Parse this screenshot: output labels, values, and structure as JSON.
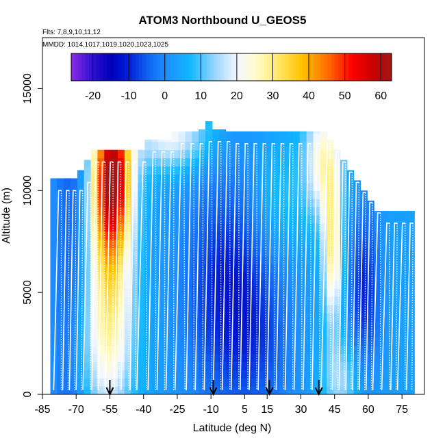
{
  "chart_data": {
    "type": "heatmap",
    "title": "ATOM3 Northbound U_GEOS5",
    "subtitle_flights": "Flts: 7,8,9,10,11,12",
    "subtitle_dates": "MMDD: 1014,1017,1019,1020,1023,1025",
    "xlabel": "Latitude (deg N)",
    "ylabel": "Altitude (m)",
    "xlim": [
      -85,
      85
    ],
    "ylim": [
      0,
      17500
    ],
    "x_ticks": [
      -85,
      -70,
      -55,
      -40,
      -25,
      -10,
      5,
      15,
      30,
      45,
      60,
      75
    ],
    "y_ticks": [
      0,
      5000,
      10000,
      15000
    ],
    "colorbar": {
      "range": [
        -26,
        63
      ],
      "ticks": [
        -20,
        -10,
        0,
        10,
        20,
        30,
        40,
        50,
        60
      ],
      "stops": [
        {
          "v": -26,
          "c": "#8a2be2"
        },
        {
          "v": -20,
          "c": "#2d0fd0"
        },
        {
          "v": -15,
          "c": "#0000b8"
        },
        {
          "v": -10,
          "c": "#0020d8"
        },
        {
          "v": -5,
          "c": "#1060f0"
        },
        {
          "v": 0,
          "c": "#1e8cff"
        },
        {
          "v": 7,
          "c": "#10b8ff"
        },
        {
          "v": 14,
          "c": "#9ad6ff"
        },
        {
          "v": 20,
          "c": "#f2f7ff"
        },
        {
          "v": 25,
          "c": "#fffbd0"
        },
        {
          "v": 30,
          "c": "#ffef80"
        },
        {
          "v": 38,
          "c": "#ffc400"
        },
        {
          "v": 45,
          "c": "#ff7000"
        },
        {
          "v": 52,
          "c": "#ff0000"
        },
        {
          "v": 58,
          "c": "#c80000"
        },
        {
          "v": 63,
          "c": "#a01818"
        }
      ]
    },
    "arrow_latitudes": [
      -55,
      -9,
      16,
      38
    ],
    "columns": [
      {
        "lat": -80,
        "top": 10600
      },
      {
        "lat": -77,
        "top": 10600
      },
      {
        "lat": -74,
        "top": 10600
      },
      {
        "lat": -71,
        "top": 10600
      },
      {
        "lat": -68,
        "top": 11000
      },
      {
        "lat": -65,
        "top": 11500
      },
      {
        "lat": -62,
        "top": 12000
      },
      {
        "lat": -59,
        "top": 12000
      },
      {
        "lat": -56,
        "top": 12000
      },
      {
        "lat": -53,
        "top": 12000
      },
      {
        "lat": -50,
        "top": 12000
      },
      {
        "lat": -47,
        "top": 12000
      },
      {
        "lat": -44,
        "top": 12000
      },
      {
        "lat": -41,
        "top": 12000
      },
      {
        "lat": -38,
        "top": 12500
      },
      {
        "lat": -35,
        "top": 12500
      },
      {
        "lat": -32,
        "top": 12500
      },
      {
        "lat": -29,
        "top": 12500
      },
      {
        "lat": -26,
        "top": 12900
      },
      {
        "lat": -23,
        "top": 12900
      },
      {
        "lat": -20,
        "top": 12900
      },
      {
        "lat": -17,
        "top": 12900
      },
      {
        "lat": -14,
        "top": 13000
      },
      {
        "lat": -11,
        "top": 13400
      },
      {
        "lat": -8,
        "top": 13000
      },
      {
        "lat": -5,
        "top": 13000
      },
      {
        "lat": -2,
        "top": 12900
      },
      {
        "lat": 1,
        "top": 12900
      },
      {
        "lat": 4,
        "top": 12900
      },
      {
        "lat": 7,
        "top": 12900
      },
      {
        "lat": 10,
        "top": 12900
      },
      {
        "lat": 13,
        "top": 12900
      },
      {
        "lat": 16,
        "top": 12900
      },
      {
        "lat": 19,
        "top": 12900
      },
      {
        "lat": 22,
        "top": 12900
      },
      {
        "lat": 25,
        "top": 12900
      },
      {
        "lat": 28,
        "top": 12900
      },
      {
        "lat": 31,
        "top": 12900
      },
      {
        "lat": 34,
        "top": 12900
      },
      {
        "lat": 37,
        "top": 12900
      },
      {
        "lat": 40,
        "top": 12900
      },
      {
        "lat": 43,
        "top": 12500
      },
      {
        "lat": 46,
        "top": 12000
      },
      {
        "lat": 49,
        "top": 11500
      },
      {
        "lat": 52,
        "top": 11000
      },
      {
        "lat": 55,
        "top": 10500
      },
      {
        "lat": 58,
        "top": 10000
      },
      {
        "lat": 61,
        "top": 9500
      },
      {
        "lat": 64,
        "top": 9000
      },
      {
        "lat": 67,
        "top": 9000
      },
      {
        "lat": 70,
        "top": 9000
      },
      {
        "lat": 73,
        "top": 9000
      },
      {
        "lat": 76,
        "top": 9000
      },
      {
        "lat": 79,
        "top": 9000
      }
    ],
    "flight_profile_latitudes": [
      -80,
      -76,
      -73,
      -70,
      -67,
      -63,
      -60,
      -57,
      -53,
      -50,
      -46,
      -43,
      -38,
      -34,
      -30,
      -26,
      -21,
      -17,
      -13,
      -9,
      -5,
      -1,
      3,
      7,
      11,
      15,
      19,
      23,
      27,
      31,
      35,
      39,
      44,
      47,
      50,
      53,
      56,
      59,
      62,
      66,
      70,
      73,
      77
    ]
  }
}
